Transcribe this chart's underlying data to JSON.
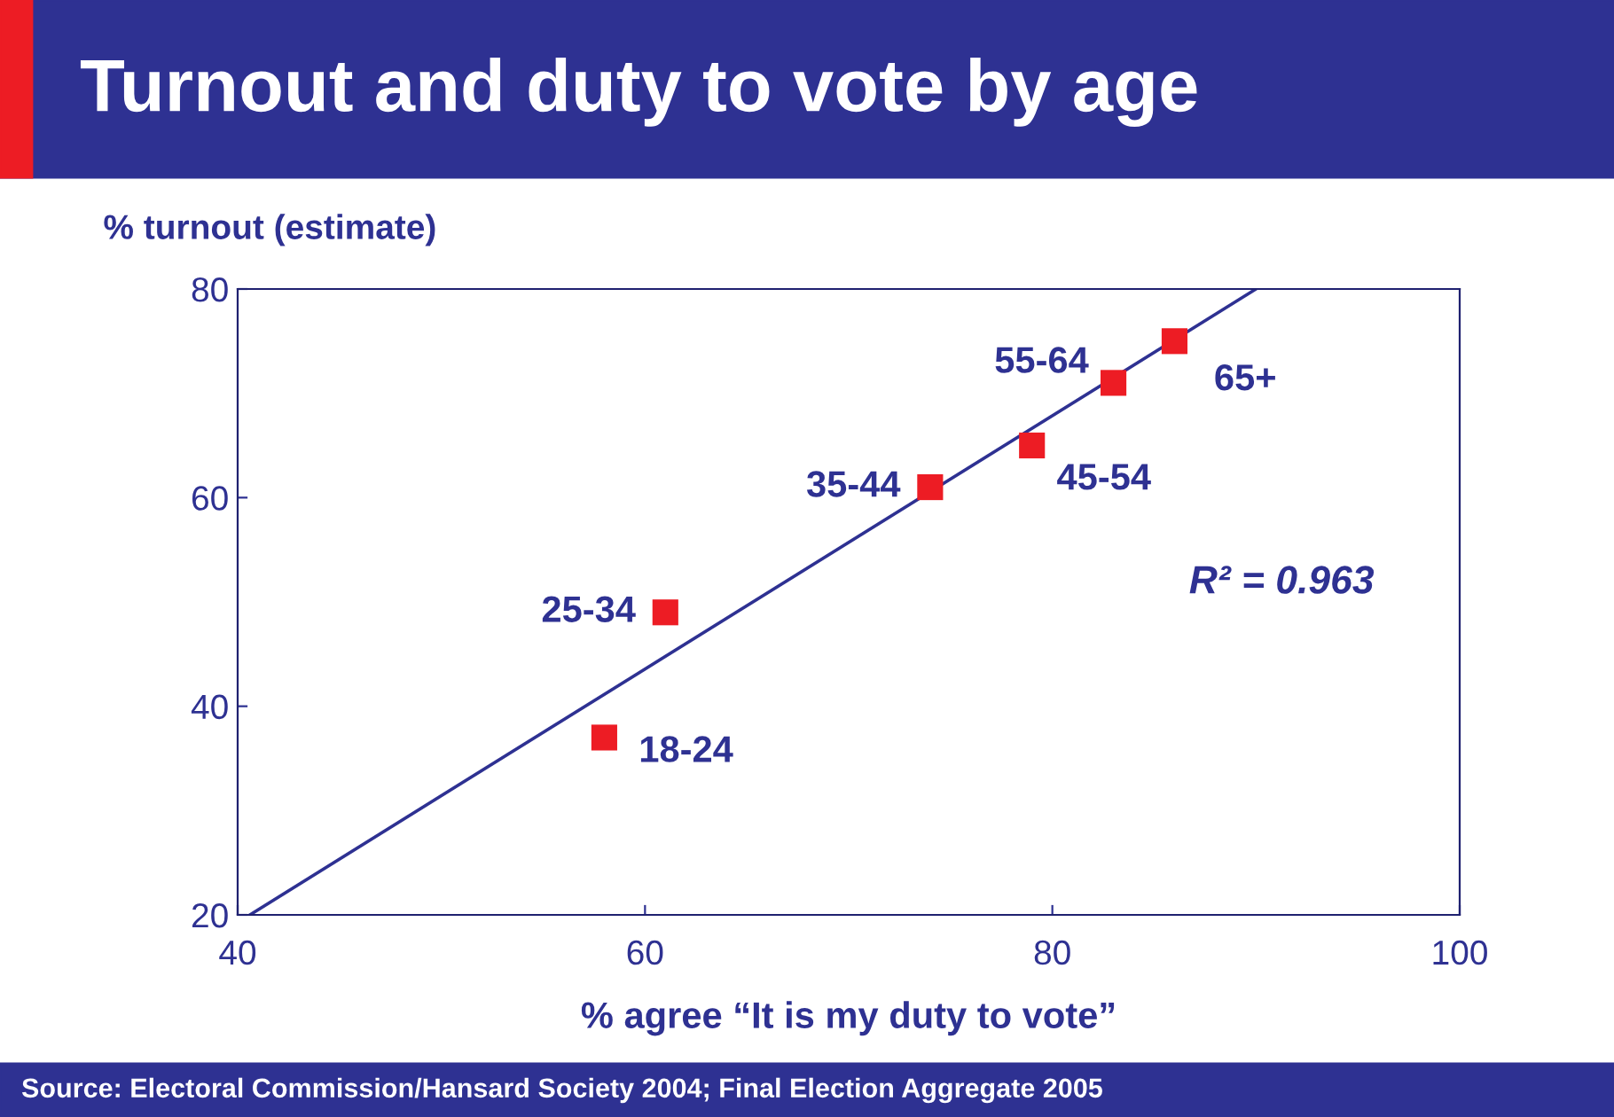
{
  "chart_data": {
    "type": "scatter",
    "title": "Turnout and duty to vote by age",
    "xlabel": "% agree “It is my duty to vote”",
    "ylabel": "% turnout (estimate)",
    "series": [
      {
        "marker": "square",
        "color": "#ed1c24",
        "x": [
          58,
          61,
          74,
          79,
          83,
          86
        ],
        "values": [
          37,
          49,
          61,
          65,
          71,
          75
        ]
      },
      {
        "type": "line",
        "marker": "none",
        "color": "#2e3192",
        "x": [
          40.6,
          90
        ],
        "values": [
          20,
          80
        ]
      }
    ],
    "annotations": [
      {
        "text": "18-24",
        "x": 58,
        "y": 37
      },
      {
        "text": "25-34",
        "x": 61,
        "y": 49
      },
      {
        "text": "35-44",
        "x": 74,
        "y": 61
      },
      {
        "text": "45-54",
        "x": 79,
        "y": 65
      },
      {
        "text": "55-64",
        "x": 83,
        "y": 71
      },
      {
        "text": "65+",
        "x": 86,
        "y": 75
      },
      "R² = 0.963",
      "Source: Electoral Commission/Hansard Society 2004; Final Election Aggregate 2005"
    ],
    "xlim": [
      40,
      100
    ],
    "ylim": [
      20,
      80
    ],
    "xticks": [
      40,
      60,
      80,
      100
    ],
    "yticks": [
      20,
      40,
      60,
      80
    ],
    "grid": false,
    "legend": false
  }
}
